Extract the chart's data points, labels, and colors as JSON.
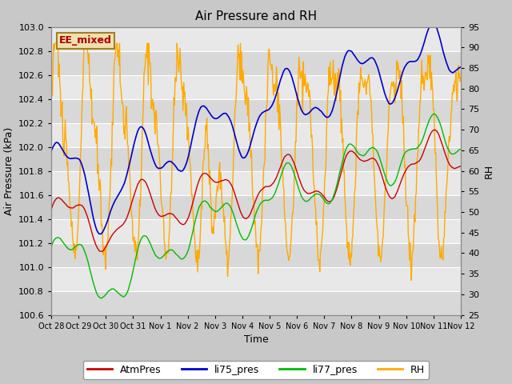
{
  "title": "Air Pressure and RH",
  "xlabel": "Time",
  "ylabel_left": "Air Pressure (kPa)",
  "ylabel_right": "RH",
  "ylim_left": [
    100.6,
    103.0
  ],
  "ylim_right": [
    25,
    95
  ],
  "yticks_left": [
    100.6,
    100.8,
    101.0,
    101.2,
    101.4,
    101.6,
    101.8,
    102.0,
    102.2,
    102.4,
    102.6,
    102.8,
    103.0
  ],
  "yticks_right": [
    25,
    30,
    35,
    40,
    45,
    50,
    55,
    60,
    65,
    70,
    75,
    80,
    85,
    90,
    95
  ],
  "xtick_labels": [
    "Oct 28",
    "Oct 29",
    "Oct 30",
    "Oct 31",
    "Nov 1",
    "Nov 2",
    "Nov 3",
    "Nov 4",
    "Nov 5",
    "Nov 6",
    "Nov 7",
    "Nov 8",
    "Nov 9",
    "Nov 10",
    "Nov 11",
    "Nov 12"
  ],
  "legend_labels": [
    "AtmPres",
    "li75_pres",
    "li77_pres",
    "RH"
  ],
  "line_colors": [
    "#cc0000",
    "#0000cc",
    "#00bb00",
    "#ffaa00"
  ],
  "annotation_text": "EE_mixed",
  "fig_bg": "#c8c8c8",
  "plot_bg": "#e8e8e8",
  "stripe_color": "#d8d8d8",
  "grid_color": "#ffffff",
  "num_points": 672,
  "seed": 7
}
